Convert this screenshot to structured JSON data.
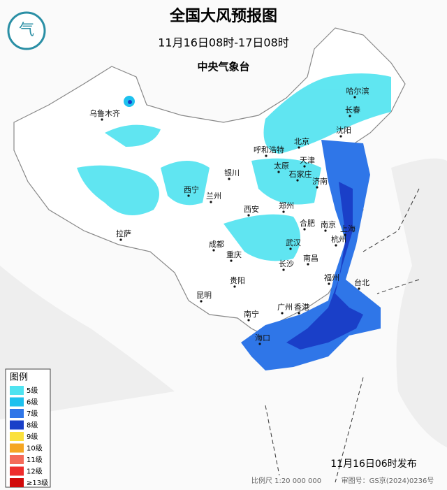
{
  "title": "全国大风预报图",
  "subtitle": "11月16日08时-17日08时",
  "issuer": "中央气象台",
  "cities": [
    "乌鲁木齐",
    "哈尔滨",
    "长春",
    "沈阳",
    "北京",
    "天津",
    "呼和浩特",
    "太原",
    "石家庄",
    "银川",
    "济南",
    "西宁",
    "兰州",
    "西安",
    "郑州",
    "合肥",
    "南京",
    "上海",
    "杭州",
    "拉萨",
    "成都",
    "武汉",
    "重庆",
    "长沙",
    "南昌",
    "福州",
    "台北",
    "贵阳",
    "昆明",
    "南宁",
    "广州",
    "香港",
    "海口"
  ],
  "legend": {
    "title": "图例",
    "items": [
      {
        "label": "5级",
        "color": "#4fe3f0"
      },
      {
        "label": "6级",
        "color": "#1ec1ee"
      },
      {
        "label": "7级",
        "color": "#2f76e8"
      },
      {
        "label": "8级",
        "color": "#1a3fc8"
      },
      {
        "label": "9级",
        "color": "#fbe13c"
      },
      {
        "label": "10级",
        "color": "#f5a623"
      },
      {
        "label": "11级",
        "color": "#f46b5a"
      },
      {
        "label": "12级",
        "color": "#ee2d2d"
      },
      {
        "label": "≥13级",
        "color": "#d10a0a"
      }
    ]
  },
  "published": "11月16日06时发布",
  "scale": "比例尺 1:20 000 000",
  "review": "审图号：GS京(2024)0236号"
}
